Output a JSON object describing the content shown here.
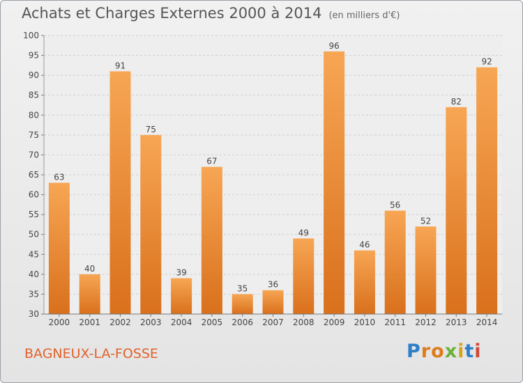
{
  "header": {
    "title": "Achats et Charges Externes 2000 à 2014",
    "subtitle": "(en milliers d'€)"
  },
  "footer": {
    "commune": "BAGNEUX-LA-FOSSE",
    "logo": [
      "P",
      "r",
      "o",
      "x",
      "i",
      "t",
      "i"
    ]
  },
  "chart_data": {
    "type": "bar",
    "title": "Achats et Charges Externes 2000 à 2014",
    "subtitle": "(en milliers d'€)",
    "xlabel": "",
    "ylabel": "",
    "categories": [
      "2000",
      "2001",
      "2002",
      "2003",
      "2004",
      "2005",
      "2006",
      "2007",
      "2008",
      "2009",
      "2010",
      "2011",
      "2012",
      "2013",
      "2014"
    ],
    "values": [
      63,
      40,
      91,
      75,
      39,
      67,
      35,
      36,
      49,
      96,
      46,
      56,
      52,
      82,
      92
    ],
    "ylim": [
      30,
      100
    ],
    "yticks": [
      30,
      35,
      40,
      45,
      50,
      55,
      60,
      65,
      70,
      75,
      80,
      85,
      90,
      95,
      100
    ],
    "grid": true,
    "bar_color_top": "#f7a654",
    "bar_color_bottom": "#d9701c"
  }
}
